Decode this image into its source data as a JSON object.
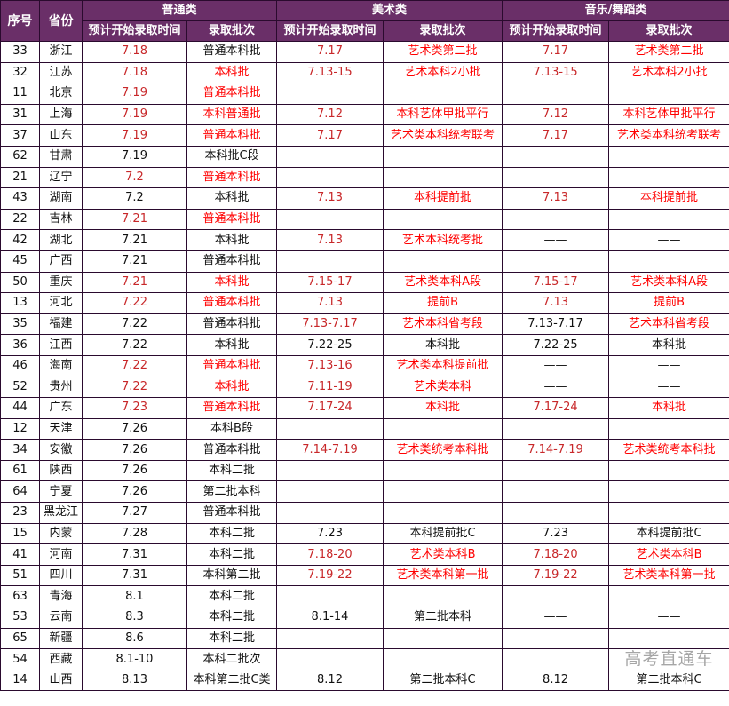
{
  "header": {
    "no": "序号",
    "province": "省份",
    "groups": [
      "普通类",
      "美术类",
      "音乐/舞蹈类"
    ],
    "sub_time": "预计开始录取时间",
    "sub_batch": "录取批次"
  },
  "colors": {
    "header_bg": "#6a2f68",
    "time_red": "#c8282a",
    "batch_red": "#ff0000",
    "grid": "#2a0a2e"
  },
  "rows": [
    {
      "no": "33",
      "province": "浙江",
      "cells": [
        "7.18",
        "普通本科批",
        "7.17",
        "艺术类第二批",
        "7.17",
        "艺术类第二批"
      ],
      "red": "101111"
    },
    {
      "no": "32",
      "province": "江苏",
      "cells": [
        "7.18",
        "本科批",
        "7.13-15",
        "艺术本科2小批",
        "7.13-15",
        "艺术本科2小批"
      ],
      "red": "111111"
    },
    {
      "no": "11",
      "province": "北京",
      "cells": [
        "7.19",
        "普通本科批",
        "",
        "",
        "",
        ""
      ],
      "red": "110000"
    },
    {
      "no": "31",
      "province": "上海",
      "cells": [
        "7.19",
        "本科普通批",
        "7.12",
        "本科艺体甲批平行",
        "7.12",
        "本科艺体甲批平行"
      ],
      "red": "111111"
    },
    {
      "no": "37",
      "province": "山东",
      "cells": [
        "7.19",
        "普通本科批",
        "7.17",
        "艺术类本科统考联考",
        "7.17",
        "艺术类本科统考联考"
      ],
      "red": "111111"
    },
    {
      "no": "62",
      "province": "甘肃",
      "cells": [
        "7.19",
        "本科批C段",
        "",
        "",
        "",
        ""
      ],
      "red": "000000"
    },
    {
      "no": "21",
      "province": "辽宁",
      "cells": [
        "7.2",
        "普通本科批",
        "",
        "",
        "",
        ""
      ],
      "red": "110000"
    },
    {
      "no": "43",
      "province": "湖南",
      "cells": [
        "7.2",
        "本科批",
        "7.13",
        "本科提前批",
        "7.13",
        "本科提前批"
      ],
      "red": "001111"
    },
    {
      "no": "22",
      "province": "吉林",
      "cells": [
        "7.21",
        "普通本科批",
        "",
        "",
        "",
        ""
      ],
      "red": "110000"
    },
    {
      "no": "42",
      "province": "湖北",
      "cells": [
        "7.21",
        "本科批",
        "7.13",
        "艺术本科统考批",
        "——",
        "——"
      ],
      "red": "001100"
    },
    {
      "no": "45",
      "province": "广西",
      "cells": [
        "7.21",
        "普通本科批",
        "",
        "",
        "",
        ""
      ],
      "red": "000000"
    },
    {
      "no": "50",
      "province": "重庆",
      "cells": [
        "7.21",
        "本科批",
        "7.15-17",
        "艺术类本科A段",
        "7.15-17",
        "艺术类本科A段"
      ],
      "red": "111111"
    },
    {
      "no": "13",
      "province": "河北",
      "cells": [
        "7.22",
        "普通本科批",
        "7.13",
        "提前B",
        "7.13",
        "提前B"
      ],
      "red": "111111"
    },
    {
      "no": "35",
      "province": "福建",
      "cells": [
        "7.22",
        "普通本科批",
        "7.13-7.17",
        "艺术本科省考段",
        "7.13-7.17",
        "艺术本科省考段"
      ],
      "red": "001101"
    },
    {
      "no": "36",
      "province": "江西",
      "cells": [
        "7.22",
        "本科批",
        "7.22-25",
        "本科批",
        "7.22-25",
        "本科批"
      ],
      "red": "000000"
    },
    {
      "no": "46",
      "province": "海南",
      "cells": [
        "7.22",
        "普通本科批",
        "7.13-16",
        "艺术类本科提前批",
        "——",
        "——"
      ],
      "red": "111100"
    },
    {
      "no": "52",
      "province": "贵州",
      "cells": [
        "7.22",
        "本科批",
        "7.11-19",
        "艺术类本科",
        "——",
        "——"
      ],
      "red": "111100"
    },
    {
      "no": "44",
      "province": "广东",
      "cells": [
        "7.23",
        "普通本科批",
        "7.17-24",
        "本科批",
        "7.17-24",
        "本科批"
      ],
      "red": "111111"
    },
    {
      "no": "12",
      "province": "天津",
      "cells": [
        "7.26",
        "本科B段",
        "",
        "",
        "",
        ""
      ],
      "red": "000000"
    },
    {
      "no": "34",
      "province": "安徽",
      "cells": [
        "7.26",
        "普通本科批",
        "7.14-7.19",
        "艺术类统考本科批",
        "7.14-7.19",
        "艺术类统考本科批"
      ],
      "red": "001111"
    },
    {
      "no": "61",
      "province": "陕西",
      "cells": [
        "7.26",
        "本科二批",
        "",
        "",
        "",
        ""
      ],
      "red": "000000"
    },
    {
      "no": "64",
      "province": "宁夏",
      "cells": [
        "7.26",
        "第二批本科",
        "",
        "",
        "",
        ""
      ],
      "red": "000000"
    },
    {
      "no": "23",
      "province": "黑龙江",
      "cells": [
        "7.27",
        "普通本科批",
        "",
        "",
        "",
        ""
      ],
      "red": "000000"
    },
    {
      "no": "15",
      "province": "内蒙",
      "cells": [
        "7.28",
        "本科二批",
        "7.23",
        "本科提前批C",
        "7.23",
        "本科提前批C"
      ],
      "red": "000000"
    },
    {
      "no": "41",
      "province": "河南",
      "cells": [
        "7.31",
        "本科二批",
        "7.18-20",
        "艺术类本科B",
        "7.18-20",
        "艺术类本科B"
      ],
      "red": "001111"
    },
    {
      "no": "51",
      "province": "四川",
      "cells": [
        "7.31",
        "本科第二批",
        "7.19-22",
        "艺术类本科第一批",
        "7.19-22",
        "艺术类本科第一批"
      ],
      "red": "001111"
    },
    {
      "no": "63",
      "province": "青海",
      "cells": [
        "8.1",
        "本科二批",
        "",
        "",
        "",
        ""
      ],
      "red": "000000"
    },
    {
      "no": "53",
      "province": "云南",
      "cells": [
        "8.3",
        "本科二批",
        "8.1-14",
        "第二批本科",
        "——",
        "——"
      ],
      "red": "000000"
    },
    {
      "no": "65",
      "province": "新疆",
      "cells": [
        "8.6",
        "本科二批",
        "",
        "",
        "",
        ""
      ],
      "red": "000000"
    },
    {
      "no": "54",
      "province": "西藏",
      "cells": [
        "8.1-10",
        "本科二批次",
        "",
        "",
        "",
        ""
      ],
      "red": "000000"
    },
    {
      "no": "14",
      "province": "山西",
      "cells": [
        "8.13",
        "本科第二批C类",
        "8.12",
        "第二批本科C",
        "8.12",
        "第二批本科C"
      ],
      "red": "000000"
    }
  ],
  "watermark": "高考直通车"
}
